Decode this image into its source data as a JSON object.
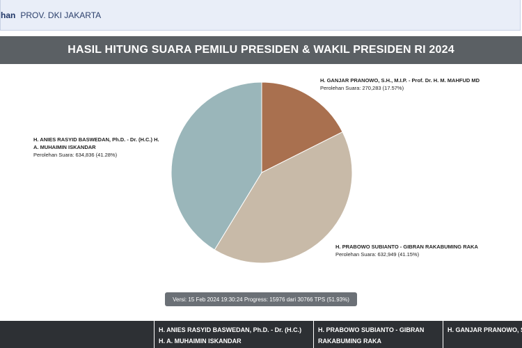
{
  "breadcrumb": {
    "prefix": "han",
    "region": "PROV. DKI JAKARTA"
  },
  "title": "HASIL HITUNG SUARA PEMILU PRESIDEN & WAKIL PRESIDEN RI 2024",
  "chart_data": {
    "type": "pie",
    "slices": [
      {
        "name": "H. GANJAR PRANOWO, S.H., M.I.P. - Prof. Dr. H. M. MAHFUD MD",
        "label_line2": "",
        "votes_text": "Perolehan Suara: 270,283 (17.57%)",
        "value": 270283,
        "percent": 17.57,
        "color": "#a9704f"
      },
      {
        "name": "H. PRABOWO SUBIANTO - GIBRAN RAKABUMING RAKA",
        "label_line2": "",
        "votes_text": "Perolehan Suara: 632,949 (41.15%)",
        "value": 632949,
        "percent": 41.15,
        "color": "#c8baa8"
      },
      {
        "name": "H. ANIES RASYID BASWEDAN, Ph.D. - Dr. (H.C.) H.",
        "label_line2": "A. MUHAIMIN ISKANDAR",
        "votes_text": "Perolehan Suara: 634,836 (41.28%)",
        "value": 634836,
        "percent": 41.28,
        "color": "#9ab6ba"
      }
    ]
  },
  "version_text": "Versi: 15 Feb 2024 19:30:24 Progress: 15976 dari 30766 TPS (51.93%)",
  "table": {
    "headers": [
      "H. ANIES RASYID BASWEDAN, Ph.D. - Dr. (H.C.) H. A. MUHAIMIN ISKANDAR",
      "H. PRABOWO SUBIANTO - GIBRAN RAKABUMING RAKA",
      "H. GANJAR PRANOWO, S. H. M. MAHFUD MD"
    ]
  },
  "colors": {
    "title_bar": "#5b6064",
    "table_header": "#2d3034",
    "breadcrumb_bg": "#e9eef8"
  }
}
